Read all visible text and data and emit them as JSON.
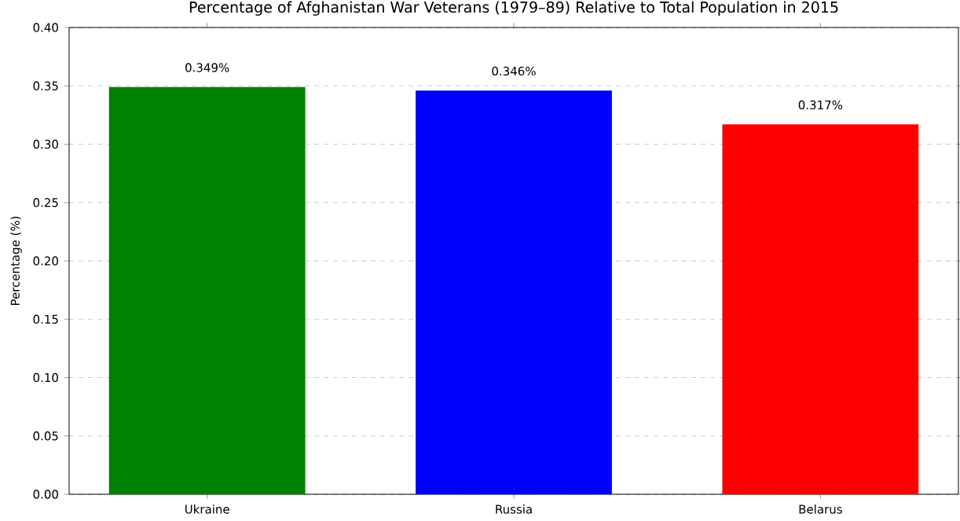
{
  "chart_data": {
    "type": "bar",
    "title": "Percentage of Afghanistan War Veterans (1979–89) Relative to Total Population in 2015",
    "ylabel": "Percentage (%)",
    "categories": [
      "Ukraine",
      "Russia",
      "Belarus"
    ],
    "values": [
      0.349,
      0.346,
      0.317
    ],
    "value_labels": [
      "0.349%",
      "0.346%",
      "0.317%"
    ],
    "colors": [
      "#008000",
      "#0000ff",
      "#ff0000"
    ],
    "ylim": [
      0,
      0.4
    ],
    "yticks": [
      {
        "value": 0,
        "label": "0.00"
      },
      {
        "value": 0.05,
        "label": "0.05"
      },
      {
        "value": 0.1,
        "label": "0.10"
      },
      {
        "value": 0.15,
        "label": "0.15"
      },
      {
        "value": 0.2,
        "label": "0.20"
      },
      {
        "value": 0.25,
        "label": "0.25"
      },
      {
        "value": 0.3,
        "label": "0.30"
      },
      {
        "value": 0.35,
        "label": "0.35"
      },
      {
        "value": 0.4,
        "label": "0.40"
      }
    ],
    "grid": "y"
  }
}
